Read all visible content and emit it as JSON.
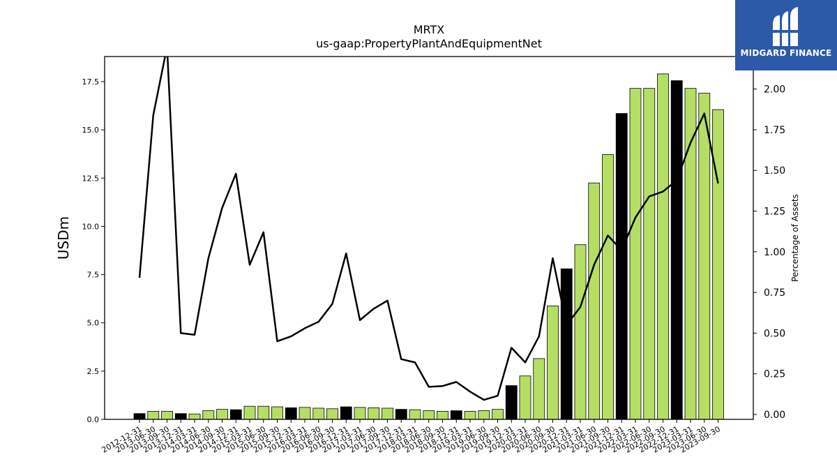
{
  "brand": {
    "name": "MIDGARD FINANCE"
  },
  "chart_data": {
    "type": "bar",
    "title": "MRTX",
    "subtitle": "us-gaap:PropertyPlantAndEquipmentNet",
    "ylabel": "USDm",
    "y2label": "Percentage of Assets",
    "ylim": [
      0,
      18.8
    ],
    "y2lim": [
      -0.03,
      2.2
    ],
    "yticks": [
      0.0,
      2.5,
      5.0,
      7.5,
      10.0,
      12.5,
      15.0,
      17.5
    ],
    "y2ticks": [
      0.0,
      0.25,
      0.5,
      0.75,
      1.0,
      1.25,
      1.5,
      1.75,
      2.0
    ],
    "colors": {
      "quarter": "#b5de64",
      "year_end": "#000000",
      "line": "#000000"
    },
    "categories": [
      "2012-12-31",
      "2013-06-30",
      "2013-09-30",
      "2013-12-31",
      "2014-03-31",
      "2014-06-30",
      "2014-09-30",
      "2014-12-31",
      "2015-03-31",
      "2015-06-30",
      "2015-09-30",
      "2015-12-31",
      "2016-03-31",
      "2016-06-30",
      "2016-09-30",
      "2016-12-31",
      "2017-03-31",
      "2017-06-30",
      "2017-09-30",
      "2017-12-31",
      "2018-03-31",
      "2018-06-30",
      "2018-09-30",
      "2018-12-31",
      "2019-03-31",
      "2019-06-30",
      "2019-09-30",
      "2019-12-31",
      "2020-03-31",
      "2020-06-30",
      "2020-09-30",
      "2020-12-31",
      "2021-03-31",
      "2021-06-30",
      "2021-09-30",
      "2021-12-31",
      "2022-03-31",
      "2022-06-30",
      "2022-09-30",
      "2022-12-31",
      "2023-03-31",
      "2023-06-30",
      "2023-09-30"
    ],
    "series": [
      {
        "type": "bar",
        "values": [
          0.3,
          0.42,
          0.42,
          0.3,
          0.28,
          0.45,
          0.52,
          0.5,
          0.68,
          0.68,
          0.65,
          0.6,
          0.62,
          0.58,
          0.55,
          0.65,
          0.62,
          0.6,
          0.58,
          0.52,
          0.5,
          0.45,
          0.42,
          0.45,
          0.42,
          0.45,
          0.52,
          1.75,
          2.25,
          3.15,
          5.88,
          7.8,
          9.05,
          12.25,
          13.72,
          15.85,
          17.15,
          17.15,
          17.9,
          17.55,
          17.15,
          16.9,
          16.05
        ],
        "year_end": [
          true,
          false,
          false,
          true,
          false,
          false,
          false,
          true,
          false,
          false,
          false,
          true,
          false,
          false,
          false,
          true,
          false,
          false,
          false,
          true,
          false,
          false,
          false,
          true,
          false,
          false,
          false,
          true,
          false,
          false,
          false,
          true,
          false,
          false,
          false,
          true,
          false,
          false,
          false,
          true,
          false,
          false,
          false
        ]
      },
      {
        "type": "line",
        "axis": "right",
        "values": [
          0.84,
          1.84,
          2.26,
          0.5,
          0.49,
          0.96,
          1.27,
          1.48,
          0.92,
          1.12,
          0.45,
          0.48,
          0.53,
          0.57,
          0.68,
          0.99,
          0.58,
          0.65,
          0.7,
          0.34,
          0.32,
          0.17,
          0.175,
          0.2,
          0.14,
          0.09,
          0.115,
          0.41,
          0.32,
          0.48,
          0.96,
          0.55,
          0.66,
          0.92,
          1.1,
          1.01,
          1.21,
          1.34,
          1.37,
          1.44,
          1.67,
          1.85,
          1.42
        ]
      }
    ]
  }
}
